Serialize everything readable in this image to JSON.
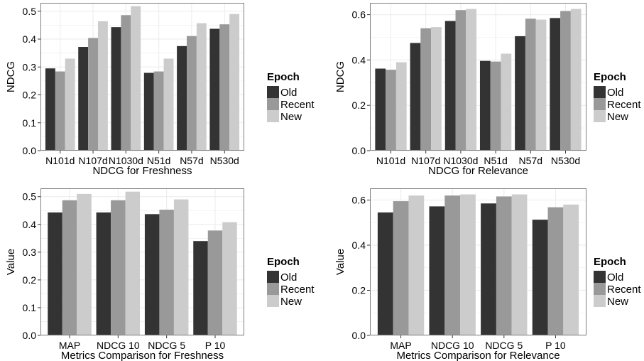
{
  "chart_data": [
    {
      "type": "bar",
      "categories": [
        "N101d",
        "N107d",
        "N1030d",
        "N51d",
        "N57d",
        "N530d"
      ],
      "series": [
        {
          "name": "Old",
          "values": [
            0.295,
            0.372,
            0.443,
            0.279,
            0.375,
            0.437
          ]
        },
        {
          "name": "Recent",
          "values": [
            0.284,
            0.404,
            0.486,
            0.284,
            0.411,
            0.453
          ]
        },
        {
          "name": "New",
          "values": [
            0.33,
            0.464,
            0.518,
            0.33,
            0.457,
            0.49
          ]
        }
      ],
      "xlabel": "NDCG for Freshness",
      "ylabel": "NDCG",
      "ylim": [
        0,
        0.53
      ],
      "yticks": [
        "0.0",
        "0.1",
        "0.2",
        "0.3",
        "0.4",
        "0.5"
      ],
      "legend_title": "Epoch",
      "legend_placement": "right",
      "grid": true
    },
    {
      "type": "bar",
      "categories": [
        "N101d",
        "N107d",
        "N1030d",
        "N51d",
        "N57d",
        "N530d"
      ],
      "series": [
        {
          "name": "Old",
          "values": [
            0.362,
            0.475,
            0.572,
            0.396,
            0.505,
            0.585
          ]
        },
        {
          "name": "Recent",
          "values": [
            0.357,
            0.54,
            0.62,
            0.393,
            0.582,
            0.616
          ]
        },
        {
          "name": "New",
          "values": [
            0.39,
            0.545,
            0.625,
            0.428,
            0.578,
            0.625
          ]
        }
      ],
      "xlabel": "NDCG for Relevance",
      "ylabel": "NDCG",
      "ylim": [
        0,
        0.652
      ],
      "yticks": [
        "0.0",
        "0.2",
        "0.4",
        "0.6"
      ],
      "legend_title": "Epoch",
      "legend_placement": "right",
      "grid": true
    },
    {
      "type": "bar",
      "categories": [
        "MAP",
        "NDCG 10",
        "NDCG 5",
        "P 10"
      ],
      "series": [
        {
          "name": "Old",
          "values": [
            0.443,
            0.443,
            0.437,
            0.34
          ]
        },
        {
          "name": "Recent",
          "values": [
            0.487,
            0.487,
            0.453,
            0.378
          ]
        },
        {
          "name": "New",
          "values": [
            0.51,
            0.518,
            0.49,
            0.408
          ]
        }
      ],
      "xlabel": "Metrics Comparison for Freshness",
      "ylabel": "Value",
      "ylim": [
        0,
        0.53
      ],
      "yticks": [
        "0.0",
        "0.1",
        "0.2",
        "0.3",
        "0.4",
        "0.5"
      ],
      "legend_title": "Epoch",
      "legend_placement": "right",
      "grid": true
    },
    {
      "type": "bar",
      "categories": [
        "MAP",
        "NDCG 10",
        "NDCG 5",
        "P 10"
      ],
      "series": [
        {
          "name": "Old",
          "values": [
            0.545,
            0.572,
            0.585,
            0.513
          ]
        },
        {
          "name": "Recent",
          "values": [
            0.595,
            0.62,
            0.616,
            0.568
          ]
        },
        {
          "name": "New",
          "values": [
            0.62,
            0.625,
            0.625,
            0.58
          ]
        }
      ],
      "xlabel": "Metrics Comparison for Relevance",
      "ylabel": "Value",
      "ylim": [
        0,
        0.652
      ],
      "yticks": [
        "0.0",
        "0.2",
        "0.4",
        "0.6"
      ],
      "legend_title": "Epoch",
      "legend_placement": "right",
      "grid": true
    }
  ],
  "colors": {
    "Old": "#333333",
    "Recent": "#999999",
    "New": "#cccccc",
    "grid": "#ebebeb",
    "panel_border": "#7f7f7f",
    "tick_text": "#4d4d4d"
  }
}
